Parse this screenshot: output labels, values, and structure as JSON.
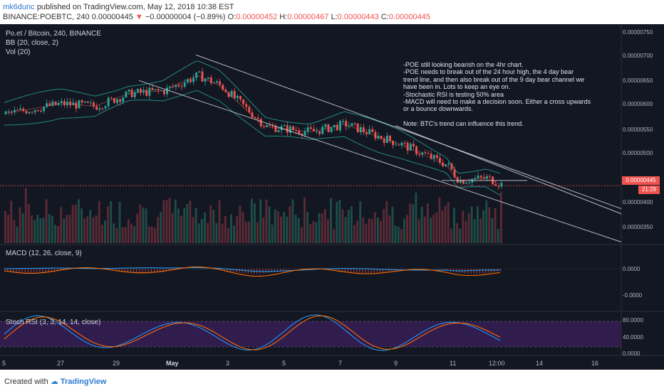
{
  "header": {
    "author": "mk6dunc",
    "published_text": "published on TradingView.com, May 12, 2018 10:38 EST",
    "symbol": "BINANCE:POEBTC, 240",
    "last": "0.00000445",
    "change_arrow": "▼",
    "change": "−0.00000004 (−0.89%)",
    "o_label": "O:",
    "o_value": "0.00000452",
    "h_label": "H:",
    "h_value": "0.00000467",
    "l_label": "L:",
    "l_value": "0.00000443",
    "c_label": "C:",
    "c_value": "0.00000445"
  },
  "legends": {
    "title": "Po.et / Bitcoin, 240, BINANCE",
    "bb": "BB (20, close, 2)",
    "vol": "Vol (20)",
    "macd": "MACD (12, 26, close, 9)",
    "stoch": "Stoch RSI (3, 3, 14, 14, close)"
  },
  "note": {
    "lines": [
      "-POE still looking bearish on the 4hr chart.",
      "-POE needs to break out of the 24 hour high, the 4 day bear",
      "trend line, and then also break out of the 9 day bear channel we",
      "have been in. Lots to keep an eye on.",
      "-Stochastic RSI is testing 50% area",
      "-MACD will need to make a decision soon. Either a cross upwards",
      "or a bounce downwards.",
      "",
      "Note: BTC's trend can influence this trend."
    ]
  },
  "footer": {
    "created_with": "Created with",
    "brand": "TradingView"
  },
  "colors": {
    "up": "#26a69a",
    "down": "#ef5350",
    "background": "#131722",
    "bb": "#26a69a",
    "macd": "#2196f3",
    "signal": "#ff6d00",
    "stoch_k": "#2196f3",
    "stoch_d": "#ff6d00"
  },
  "chart_data": {
    "type": "candlestick",
    "instrument": "Po.et / Bitcoin, 240, BINANCE",
    "x_ticks": [
      "5",
      "27",
      "29",
      "May",
      "3",
      "5",
      "7",
      "9",
      "11",
      "12:00",
      "14",
      "16"
    ],
    "price_axis": {
      "ticks": [
        "0.00000750",
        "0.00000700",
        "0.00000650",
        "0.00000600",
        "0.00000550",
        "0.00000500",
        "0.00000400",
        "0.00000350"
      ],
      "ylim": [
        3.3e-06,
        7.6e-06
      ],
      "last_price_badge": "0.00000445",
      "countdown_badge": "21:29"
    },
    "key_prices": {
      "open": 4.52e-06,
      "high": 4.67e-06,
      "low": 4.43e-06,
      "close": 4.45e-06
    },
    "close_path": [
      [
        0,
        5.85e-06
      ],
      [
        10,
        6.05e-06
      ],
      [
        16,
        6e-06
      ],
      [
        22,
        6.25e-06
      ],
      [
        28,
        6.3e-06
      ],
      [
        34,
        6.6e-06
      ],
      [
        38,
        6.4e-06
      ],
      [
        46,
        5.6e-06
      ],
      [
        54,
        5.5e-06
      ],
      [
        60,
        5.65e-06
      ],
      [
        66,
        5.4e-06
      ],
      [
        70,
        5.25e-06
      ],
      [
        74,
        5.05e-06
      ],
      [
        78,
        4.85e-06
      ],
      [
        80,
        4.55e-06
      ],
      [
        85,
        4.6e-06
      ],
      [
        88,
        4.45e-06
      ]
    ],
    "macd": {
      "ticks": [
        "0.0000",
        "-0.0000"
      ]
    },
    "stoch_rsi": {
      "ticks": [
        "80.0000",
        "40.0000",
        "0.0000"
      ],
      "bands": [
        80,
        20
      ]
    }
  }
}
